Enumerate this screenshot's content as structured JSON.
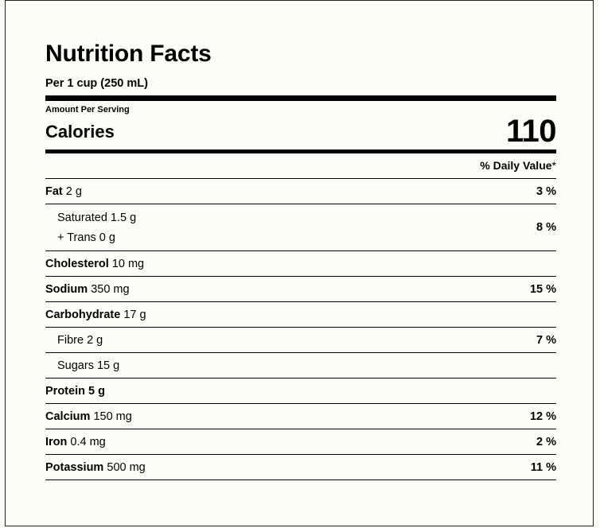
{
  "title": "Nutrition Facts",
  "serving": "Per 1 cup (250 mL)",
  "amount_per_serving": "Amount Per Serving",
  "calories": {
    "label": "Calories",
    "value": "110"
  },
  "daily_value_header": {
    "label": "% Daily Value",
    "star": "*"
  },
  "nutrients": [
    {
      "name": "Fat",
      "amount": "2 g",
      "dv": "3 %"
    },
    {
      "name": "Saturated",
      "amount": "1.5 g",
      "name2": "+ Trans",
      "amount2": "0 g",
      "dv": "8 %"
    },
    {
      "name": "Cholesterol",
      "amount": "10 mg",
      "dv": ""
    },
    {
      "name": "Sodium",
      "amount": "350 mg",
      "dv": "15 %"
    },
    {
      "name": "Carbohydrate",
      "amount": "17 g",
      "dv": ""
    },
    {
      "name": "Fibre",
      "amount": "2 g",
      "dv": "7 %"
    },
    {
      "name": "Sugars",
      "amount": "15 g",
      "dv": ""
    },
    {
      "name": "Protein",
      "amount": "5 g",
      "dv": ""
    },
    {
      "name": "Calcium",
      "amount": "150 mg",
      "dv": "12 %"
    },
    {
      "name": "Iron",
      "amount": "0.4 mg",
      "dv": "2 %"
    },
    {
      "name": "Potassium",
      "amount": "500 mg",
      "dv": "11 %"
    }
  ]
}
